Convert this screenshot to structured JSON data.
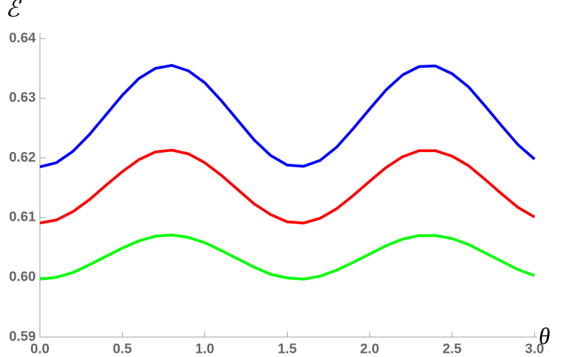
{
  "chart_data": {
    "type": "line",
    "x_label": "θ",
    "y_label": "ℰ",
    "x": [
      0.0,
      0.1,
      0.2,
      0.3,
      0.4,
      0.5,
      0.6,
      0.7,
      0.8,
      0.9,
      1.0,
      1.1,
      1.2,
      1.3,
      1.4,
      1.5,
      1.6,
      1.7,
      1.8,
      1.9,
      2.0,
      2.1,
      2.2,
      2.3,
      2.4,
      2.5,
      2.6,
      2.7,
      2.8,
      2.9,
      3.0
    ],
    "series": [
      {
        "color": "#0000ff",
        "values": [
          0.6185,
          0.6192,
          0.6211,
          0.6239,
          0.6272,
          0.6305,
          0.6333,
          0.635,
          0.6355,
          0.6346,
          0.6326,
          0.6296,
          0.6263,
          0.623,
          0.6204,
          0.6188,
          0.6186,
          0.6196,
          0.6218,
          0.6249,
          0.6282,
          0.6314,
          0.6339,
          0.6353,
          0.6354,
          0.6341,
          0.6319,
          0.6287,
          0.6254,
          0.6222,
          0.6198
        ]
      },
      {
        "color": "#ff0000",
        "values": [
          0.6091,
          0.6096,
          0.611,
          0.613,
          0.6154,
          0.6177,
          0.6197,
          0.621,
          0.6213,
          0.6207,
          0.6192,
          0.6171,
          0.6147,
          0.6123,
          0.6105,
          0.6093,
          0.6091,
          0.6099,
          0.6115,
          0.6137,
          0.6161,
          0.6184,
          0.6202,
          0.6212,
          0.6212,
          0.6203,
          0.6187,
          0.6164,
          0.614,
          0.6117,
          0.6101
        ]
      },
      {
        "color": "#00ff00",
        "values": [
          0.5997,
          0.6,
          0.6008,
          0.6021,
          0.6035,
          0.6049,
          0.6061,
          0.6069,
          0.6071,
          0.6067,
          0.6058,
          0.6045,
          0.6031,
          0.6017,
          0.6005,
          0.5999,
          0.5997,
          0.6002,
          0.6012,
          0.6025,
          0.6039,
          0.6053,
          0.6064,
          0.607,
          0.607,
          0.6065,
          0.6055,
          0.6041,
          0.6027,
          0.6013,
          0.6003
        ]
      }
    ],
    "xlim": [
      0,
      3
    ],
    "xticks": [
      {
        "value": 0,
        "label": "0.0"
      },
      0.5,
      {
        "value": 1,
        "label": "1.0"
      },
      1.5,
      {
        "value": 2,
        "label": "2.0"
      },
      2.5,
      {
        "value": 3,
        "label": "3.0"
      }
    ],
    "ylim": [
      0.59,
      0.64
    ],
    "yticks": [
      0.59,
      {
        "value": 0.6,
        "label": "0.60"
      },
      0.61,
      0.62,
      0.63,
      0.64
    ]
  }
}
